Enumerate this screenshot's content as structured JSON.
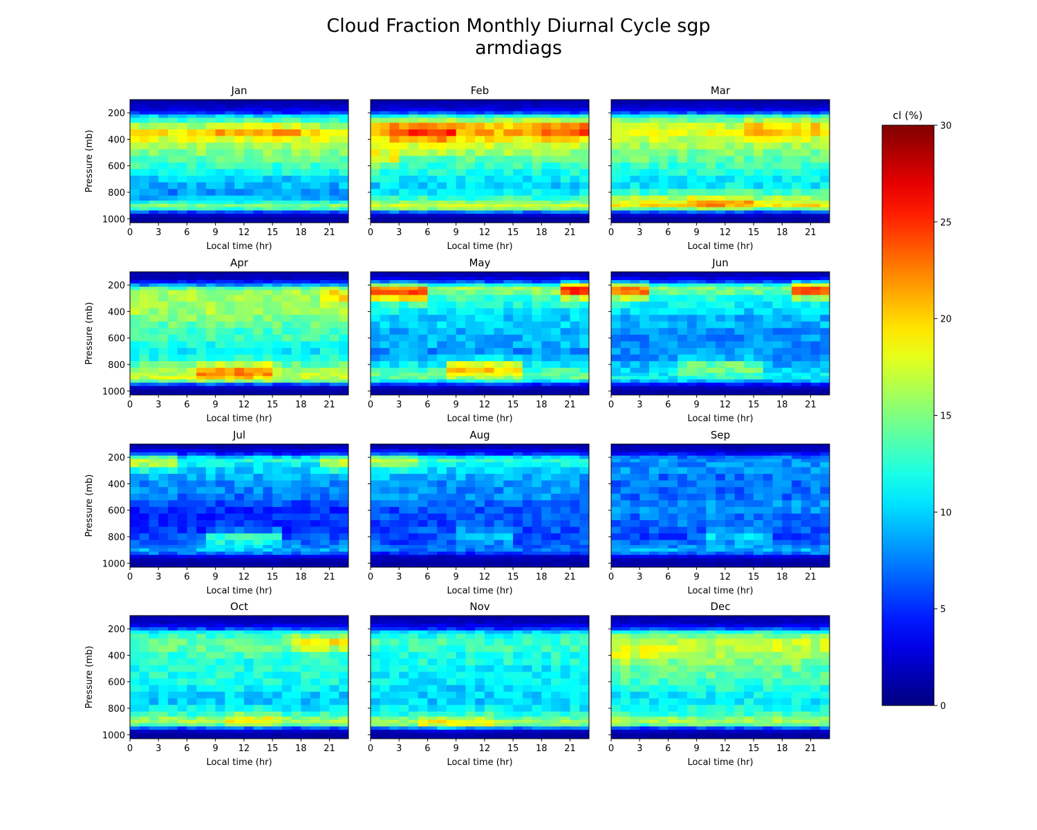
{
  "figure": {
    "title_line1": "Cloud Fraction Monthly Diurnal Cycle sgp",
    "title_line2": "armdiags"
  },
  "colorbar": {
    "title": "cl (%)",
    "colormap": "jet",
    "range": [
      0,
      30
    ],
    "ticks": [
      "0",
      "5",
      "10",
      "15",
      "20",
      "25",
      "30"
    ]
  },
  "chart_data": {
    "type": "heatmap",
    "variable": "cl",
    "units": "%",
    "xlabel": "Local time (hr)",
    "ylabel": "Pressure (mb)",
    "x_ticks": [
      "0",
      "3",
      "6",
      "9",
      "12",
      "15",
      "18",
      "21"
    ],
    "y_ticks": [
      "200",
      "400",
      "600",
      "800",
      "1000"
    ],
    "xlim": [
      0,
      23
    ],
    "ylim": [
      1030,
      100
    ],
    "vmin": 0,
    "vmax": 30,
    "hours": [
      0,
      1,
      2,
      3,
      4,
      5,
      6,
      7,
      8,
      9,
      10,
      11,
      12,
      13,
      14,
      15,
      16,
      17,
      18,
      19,
      20,
      21,
      22
    ],
    "pressure_levels": [
      100,
      125,
      150,
      175,
      200,
      225,
      250,
      300,
      350,
      400,
      450,
      500,
      550,
      600,
      650,
      700,
      750,
      800,
      850,
      875,
      900,
      925,
      950,
      975,
      1000
    ],
    "panels": [
      {
        "month": "Jan",
        "profile": [
          1,
          1.5,
          2,
          3,
          5,
          10,
          13,
          16,
          19,
          18,
          16,
          15,
          14,
          13,
          12,
          10,
          9,
          8,
          9,
          12,
          15,
          13,
          6,
          2,
          1
        ],
        "features": [
          {
            "t0": 8,
            "t1": 17,
            "p": 325,
            "amp": 2.5
          }
        ]
      },
      {
        "month": "Feb",
        "profile": [
          1,
          1.5,
          2,
          3,
          6,
          12,
          16,
          20,
          21,
          19,
          17,
          16,
          14,
          13,
          12,
          11,
          10,
          11,
          13,
          15,
          17,
          15,
          7,
          2,
          1
        ],
        "features": [
          {
            "t0": 2,
            "t1": 8,
            "p": 360,
            "amp": 4
          },
          {
            "t0": 18,
            "t1": 22,
            "p": 330,
            "amp": 3
          },
          {
            "t0": 0,
            "t1": 2,
            "p": 550,
            "amp": 4
          }
        ]
      },
      {
        "month": "Mar",
        "profile": [
          1,
          1.5,
          2,
          3,
          6,
          12,
          15,
          17,
          18,
          17,
          16,
          15,
          14,
          13,
          12,
          11,
          11,
          13,
          16,
          18,
          19,
          14,
          6,
          2,
          1
        ],
        "features": [
          {
            "t0": 14,
            "t1": 21,
            "p": 320,
            "amp": 3
          },
          {
            "t0": 8,
            "t1": 14,
            "p": 880,
            "amp": 3
          }
        ]
      },
      {
        "month": "Apr",
        "profile": [
          1,
          1.5,
          2,
          4,
          8,
          14,
          16,
          16,
          16,
          16,
          15,
          14,
          13,
          13,
          12,
          11,
          12,
          14,
          16,
          17,
          17,
          14,
          6,
          2,
          1
        ],
        "features": [
          {
            "t0": 7,
            "t1": 14,
            "p": 850,
            "amp": 6
          },
          {
            "t0": 20,
            "t1": 22,
            "p": 280,
            "amp": 4
          }
        ]
      },
      {
        "month": "May",
        "profile": [
          1,
          1.5,
          3,
          6,
          12,
          16,
          15,
          13,
          12,
          11,
          10,
          10,
          9,
          9,
          9,
          8,
          9,
          11,
          13,
          14,
          14,
          11,
          5,
          2,
          1
        ],
        "features": [
          {
            "t0": 0,
            "t1": 5,
            "p": 260,
            "amp": 9
          },
          {
            "t0": 20,
            "t1": 22,
            "p": 240,
            "amp": 10
          },
          {
            "t0": 8,
            "t1": 15,
            "p": 830,
            "amp": 8
          }
        ]
      },
      {
        "month": "Jun",
        "profile": [
          1,
          1.5,
          3,
          6,
          12,
          15,
          14,
          12,
          11,
          10,
          9,
          9,
          8,
          8,
          8,
          8,
          8,
          9,
          10,
          11,
          11,
          9,
          4,
          2,
          1
        ],
        "features": [
          {
            "t0": 0,
            "t1": 3,
            "p": 250,
            "amp": 9
          },
          {
            "t0": 19,
            "t1": 22,
            "p": 240,
            "amp": 10
          },
          {
            "t0": 7,
            "t1": 15,
            "p": 820,
            "amp": 6
          }
        ]
      },
      {
        "month": "Jul",
        "profile": [
          1,
          1.5,
          3,
          5,
          10,
          12,
          11,
          10,
          9,
          8,
          8,
          7,
          6,
          5,
          5,
          5,
          5,
          6,
          7,
          8,
          9,
          7,
          3,
          1.5,
          1
        ],
        "features": [
          {
            "t0": 0,
            "t1": 4,
            "p": 240,
            "amp": 5
          },
          {
            "t0": 20,
            "t1": 22,
            "p": 240,
            "amp": 5
          },
          {
            "t0": 8,
            "t1": 15,
            "p": 810,
            "amp": 7
          }
        ]
      },
      {
        "month": "Aug",
        "profile": [
          1,
          1.5,
          3,
          5,
          10,
          13,
          11,
          10,
          9,
          8,
          8,
          8,
          7,
          6,
          6,
          6,
          6,
          6,
          6,
          7,
          7,
          5,
          2,
          1.5,
          1
        ],
        "features": [
          {
            "t0": 0,
            "t1": 4,
            "p": 240,
            "amp": 5
          },
          {
            "t0": 9,
            "t1": 14,
            "p": 800,
            "amp": 4
          }
        ]
      },
      {
        "month": "Sep",
        "profile": [
          1,
          1.5,
          2,
          4,
          7,
          8,
          8,
          8,
          7,
          7,
          7,
          7,
          8,
          8,
          7,
          7,
          6,
          6,
          7,
          8,
          9,
          7,
          3,
          1.5,
          1
        ],
        "features": [
          {
            "t0": 10,
            "t1": 16,
            "p": 790,
            "amp": 4
          }
        ]
      },
      {
        "month": "Oct",
        "profile": [
          1,
          1.5,
          2,
          3,
          6,
          11,
          13,
          14,
          14,
          13,
          12,
          12,
          12,
          12,
          11,
          10,
          10,
          11,
          13,
          15,
          16,
          14,
          6,
          2,
          1
        ],
        "features": [
          {
            "t0": 17,
            "t1": 22,
            "p": 300,
            "amp": 5
          },
          {
            "t0": 10,
            "t1": 15,
            "p": 880,
            "amp": 3
          }
        ]
      },
      {
        "month": "Nov",
        "profile": [
          1,
          1.5,
          2,
          3,
          5,
          10,
          12,
          13,
          13,
          12,
          12,
          11,
          11,
          11,
          10,
          10,
          10,
          11,
          12,
          14,
          16,
          15,
          7,
          2,
          1
        ],
        "features": [
          {
            "t0": 5,
            "t1": 12,
            "p": 910,
            "amp": 3
          }
        ]
      },
      {
        "month": "Dec",
        "profile": [
          1,
          1.5,
          2,
          3,
          6,
          12,
          15,
          17,
          17,
          16,
          15,
          14,
          14,
          13,
          12,
          11,
          11,
          12,
          13,
          15,
          16,
          14,
          6,
          2,
          1
        ],
        "features": [
          {
            "t0": 0,
            "t1": 5,
            "p": 400,
            "amp": 2
          }
        ]
      }
    ]
  }
}
